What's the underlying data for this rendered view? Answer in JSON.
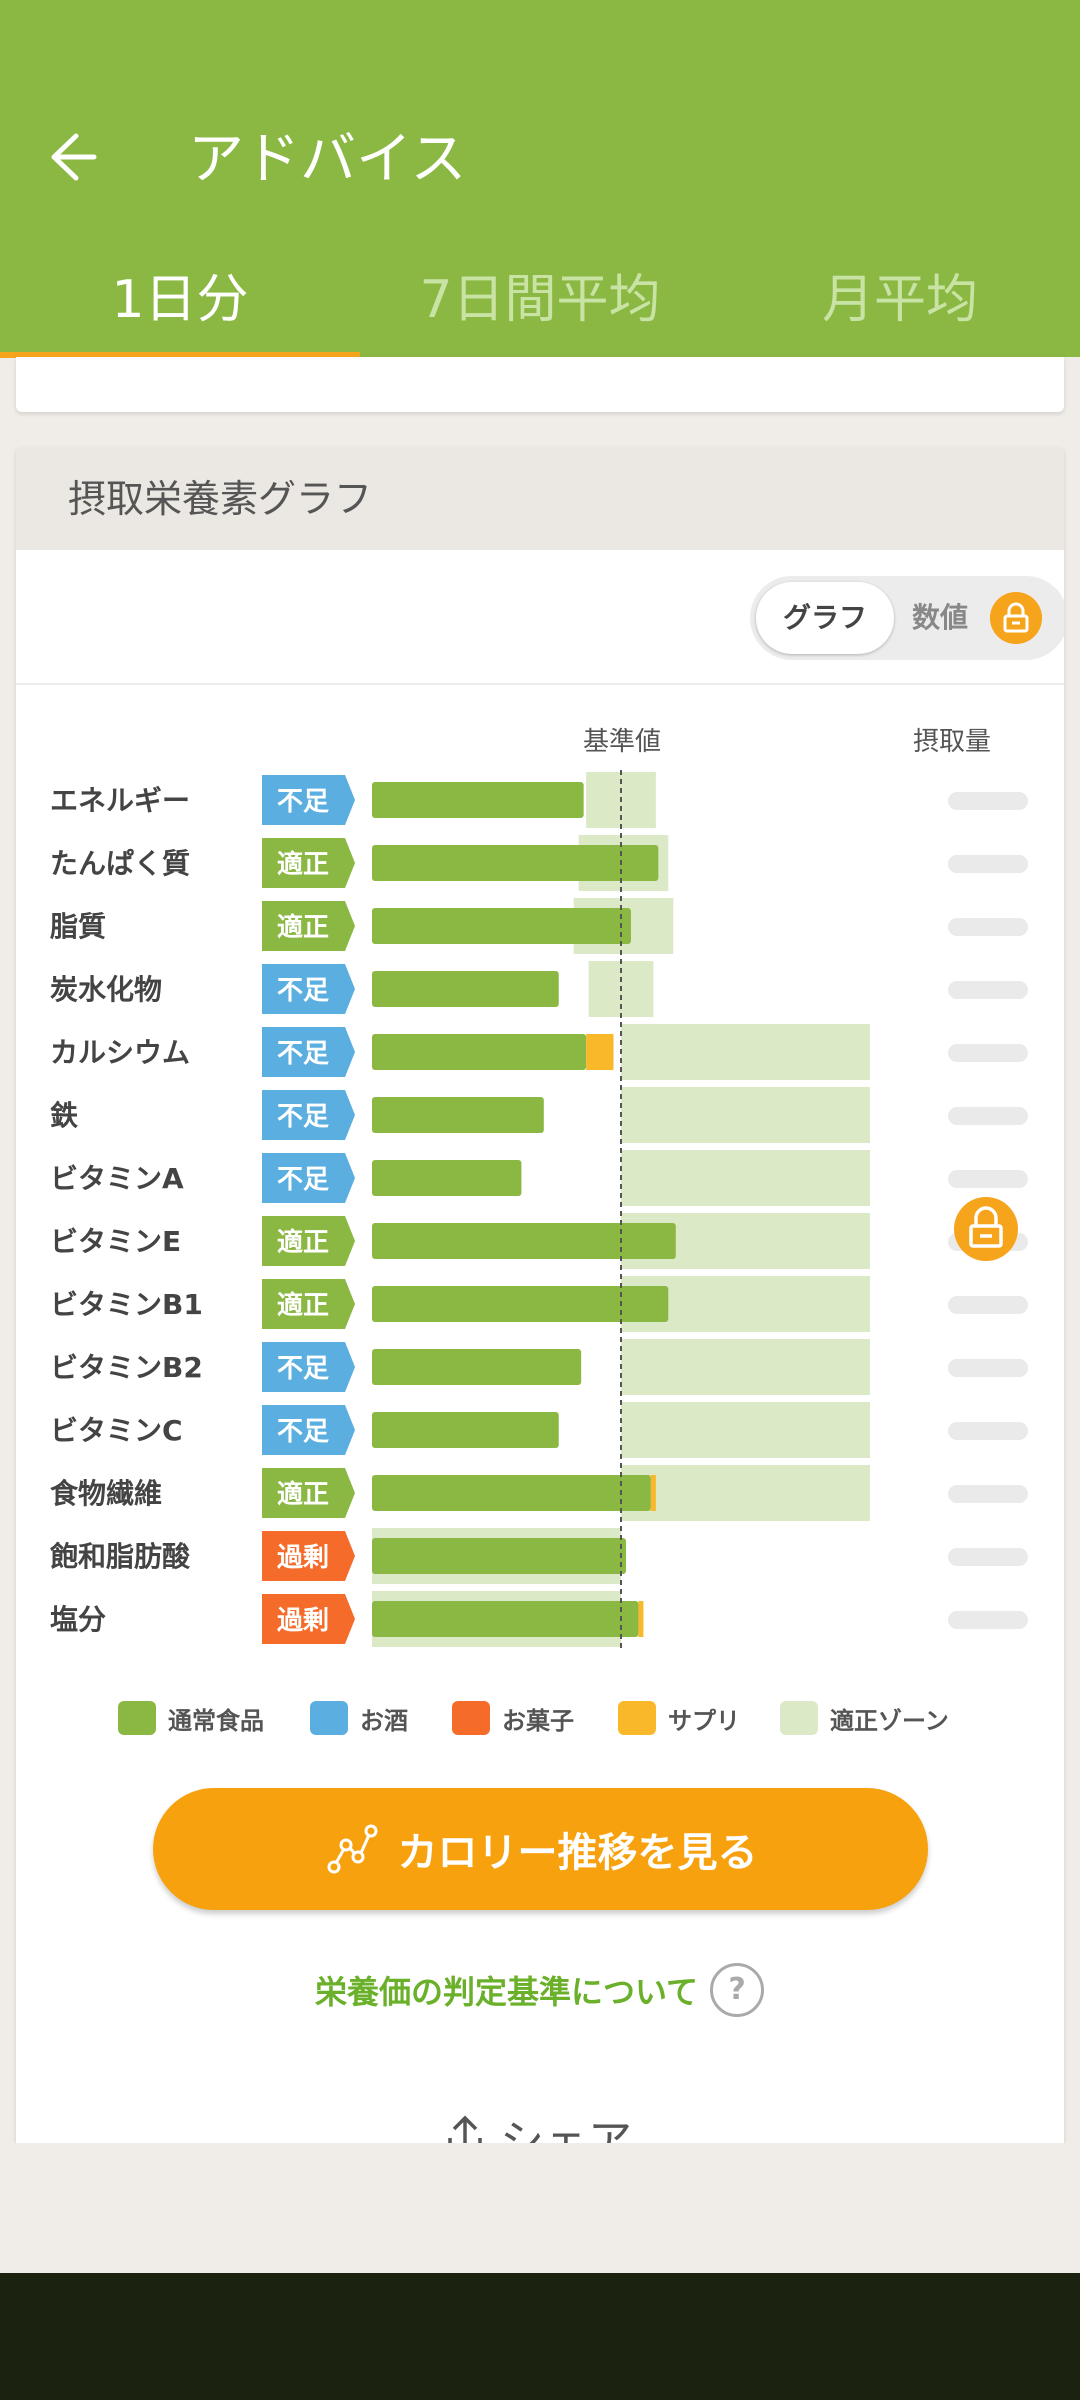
{
  "header": {
    "title": "アドバイス",
    "tabs": [
      "1日分",
      "7日間平均",
      "月平均"
    ],
    "active_tab": 0
  },
  "card": {
    "title": "摂取栄養素グラフ",
    "toggle": {
      "graph_label": "グラフ",
      "number_label": "数値",
      "locked": true
    }
  },
  "chart_data": {
    "type": "bar",
    "column_headers": {
      "reference": "基準値",
      "intake": "摂取量"
    },
    "rows": [
      {
        "name": "エネルギー",
        "status": "不足",
        "food": 0.85,
        "supp": 0,
        "zone": [
          0.86,
          1.14
        ]
      },
      {
        "name": "たんぱく質",
        "status": "適正",
        "food": 1.15,
        "supp": 0,
        "zone": [
          0.83,
          1.19
        ]
      },
      {
        "name": "脂質",
        "status": "適正",
        "food": 1.04,
        "supp": 0,
        "zone": [
          0.81,
          1.21
        ]
      },
      {
        "name": "炭水化物",
        "status": "不足",
        "food": 0.75,
        "supp": 0,
        "zone": [
          0.87,
          1.13
        ]
      },
      {
        "name": "カルシウム",
        "status": "不足",
        "food": 0.86,
        "supp": 0.11,
        "zone": [
          1.0,
          2.0
        ]
      },
      {
        "name": "鉄",
        "status": "不足",
        "food": 0.69,
        "supp": 0,
        "zone": [
          1.0,
          2.0
        ]
      },
      {
        "name": "ビタミンA",
        "status": "不足",
        "food": 0.6,
        "supp": 0,
        "zone": [
          1.0,
          2.0
        ]
      },
      {
        "name": "ビタミンE",
        "status": "適正",
        "food": 1.22,
        "supp": 0,
        "zone": [
          1.0,
          2.0
        ]
      },
      {
        "name": "ビタミンB1",
        "status": "適正",
        "food": 1.19,
        "supp": 0,
        "zone": [
          1.0,
          2.0
        ]
      },
      {
        "name": "ビタミンB2",
        "status": "不足",
        "food": 0.84,
        "supp": 0,
        "zone": [
          1.0,
          2.0
        ]
      },
      {
        "name": "ビタミンC",
        "status": "不足",
        "food": 0.75,
        "supp": 0,
        "zone": [
          1.0,
          2.0
        ]
      },
      {
        "name": "食物繊維",
        "status": "適正",
        "food": 1.12,
        "supp": 0.02,
        "zone": [
          1.0,
          2.0
        ]
      },
      {
        "name": "飽和脂肪酸",
        "status": "過剰",
        "food": 1.02,
        "supp": 0,
        "zone": [
          0.0,
          1.0
        ]
      },
      {
        "name": "塩分",
        "status": "過剰",
        "food": 1.07,
        "supp": 0.02,
        "zone": [
          0.0,
          1.0
        ]
      }
    ],
    "status_colors": {
      "不足": "#5aaee0",
      "適正": "#8ab843",
      "過剰": "#f56b2a"
    },
    "legend": [
      {
        "label": "通常食品",
        "color": "#8ab843"
      },
      {
        "label": "お酒",
        "color": "#5aaee0"
      },
      {
        "label": "お菓子",
        "color": "#f56b2a"
      },
      {
        "label": "サプリ",
        "color": "#f9b82a"
      },
      {
        "label": "適正ゾーン",
        "color": "#dce9c7"
      }
    ],
    "intake_values_blurred": true
  },
  "cta": {
    "label": "カロリー推移を見る"
  },
  "criteria_link": {
    "label": "栄養価の判定基準について",
    "help": "?"
  },
  "share": {
    "label": "シェア"
  },
  "colors": {
    "brand_green": "#8ab843",
    "accent_orange": "#f7a10e"
  }
}
